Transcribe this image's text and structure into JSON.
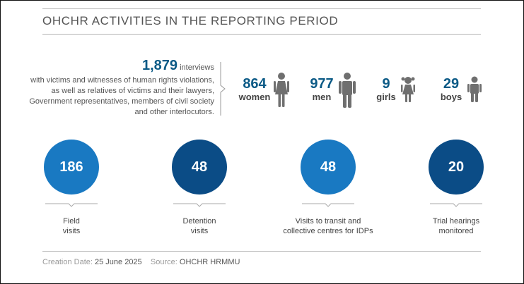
{
  "title": "OHCHR ACTIVITIES IN THE REPORTING PERIOD",
  "intro": {
    "number": "1,879",
    "first_line_tail": "interviews",
    "rest": "with victims and witnesses of human rights violations, as well as relatives of victims and their lawyers, Government representatives, members of civil society and other interlocutors."
  },
  "breakdown": [
    {
      "value": "864",
      "label": "women",
      "icon": "woman-icon"
    },
    {
      "value": "977",
      "label": "men",
      "icon": "man-icon"
    },
    {
      "value": "9",
      "label": "girls",
      "icon": "girl-icon"
    },
    {
      "value": "29",
      "label": "boys",
      "icon": "boy-icon"
    }
  ],
  "activities": [
    {
      "value": "186",
      "label_line1": "Field",
      "label_line2": "visits",
      "color": "#1979c2"
    },
    {
      "value": "48",
      "label_line1": "Detention",
      "label_line2": "visits",
      "color": "#0b4c86"
    },
    {
      "value": "48",
      "label_line1": "Visits to transit and",
      "label_line2": "collective centres for IDPs",
      "color": "#1979c2"
    },
    {
      "value": "20",
      "label_line1": "Trial hearings",
      "label_line2": "monitored",
      "color": "#0b4c86"
    }
  ],
  "footer": {
    "creation_label": "Creation Date:",
    "creation_date": "25 June 2025",
    "source_label": "Source:",
    "source_value": "OHCHR HRMMU"
  },
  "colors": {
    "accent_blue": "#0b5a86",
    "light_circle": "#1979c2",
    "dark_circle": "#0b4c86",
    "icon_gray": "#6f6f6f"
  }
}
